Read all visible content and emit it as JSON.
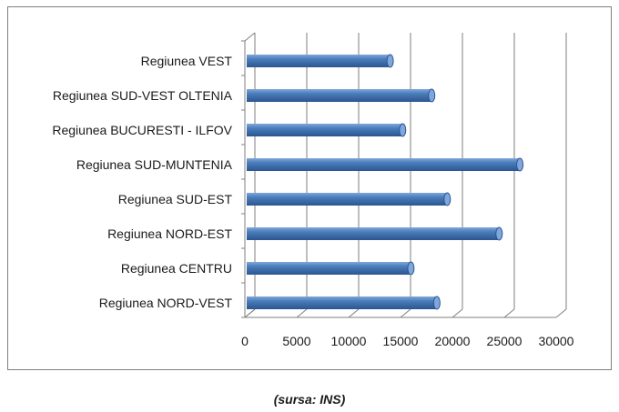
{
  "chart_data": {
    "type": "bar",
    "orientation": "horizontal",
    "style": "3d-cylinder",
    "categories": [
      "Regiunea VEST",
      "Regiunea SUD-VEST OLTENIA",
      "Regiunea BUCURESTI - ILFOV",
      "Regiunea SUD-MUNTENIA",
      "Regiunea SUD-EST",
      "Regiunea NORD-EST",
      "Regiunea CENTRU",
      "Regiunea NORD-VEST"
    ],
    "values": [
      14000,
      18000,
      15200,
      26500,
      19500,
      24500,
      16000,
      18500
    ],
    "xlim": [
      0,
      30000
    ],
    "xticks": [
      0,
      5000,
      10000,
      15000,
      20000,
      25000,
      30000
    ],
    "xtick_labels": [
      "0",
      "5000",
      "10000",
      "15000",
      "20000",
      "25000",
      "30000"
    ],
    "grid": "vertical",
    "legend": "none",
    "colors": {
      "bar": "#4a7ebb",
      "bar_light": "#7fa7db",
      "bar_dark": "#2b5591",
      "grid": "#7f7f7f",
      "frame": "#7f7f7f"
    }
  },
  "caption": "(sursa: INS)"
}
